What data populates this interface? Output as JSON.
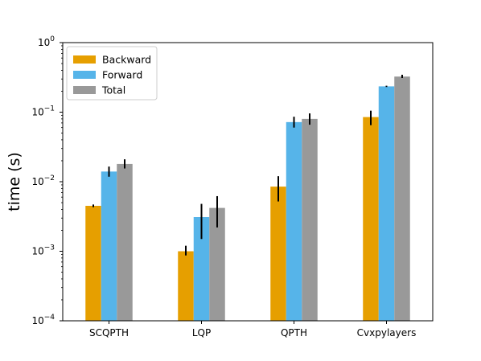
{
  "chart_data": {
    "type": "bar",
    "title": "",
    "xlabel": "",
    "ylabel": "time (s)",
    "yscale": "log",
    "ylim": [
      0.0001,
      1
    ],
    "yticks": [
      {
        "value": 0.0001,
        "base": "10",
        "exp": "−4"
      },
      {
        "value": 0.001,
        "base": "10",
        "exp": "−3"
      },
      {
        "value": 0.01,
        "base": "10",
        "exp": "−2"
      },
      {
        "value": 0.1,
        "base": "10",
        "exp": "−1"
      },
      {
        "value": 1,
        "base": "10",
        "exp": "0"
      }
    ],
    "categories": [
      "SCQPTH",
      "LQP",
      "QPTH",
      "Cvxpylayers"
    ],
    "legend_position": "top-left",
    "grid": false,
    "series": [
      {
        "name": "Backward",
        "color": "#E69F00",
        "values": [
          0.0045,
          0.001,
          0.0085,
          0.085
        ],
        "err_low": [
          0.0043,
          0.00087,
          0.0052,
          0.065
        ],
        "err_high": [
          0.0047,
          0.0012,
          0.012,
          0.105
        ]
      },
      {
        "name": "Forward",
        "color": "#56B4E9",
        "values": [
          0.014,
          0.0031,
          0.072,
          0.235
        ],
        "err_low": [
          0.0118,
          0.0015,
          0.06,
          0.23
        ],
        "err_high": [
          0.0165,
          0.0048,
          0.086,
          0.24
        ]
      },
      {
        "name": "Total",
        "color": "#999999",
        "values": [
          0.018,
          0.0042,
          0.08,
          0.325
        ],
        "err_low": [
          0.0155,
          0.0022,
          0.066,
          0.31
        ],
        "err_high": [
          0.021,
          0.0062,
          0.096,
          0.345
        ]
      }
    ]
  }
}
